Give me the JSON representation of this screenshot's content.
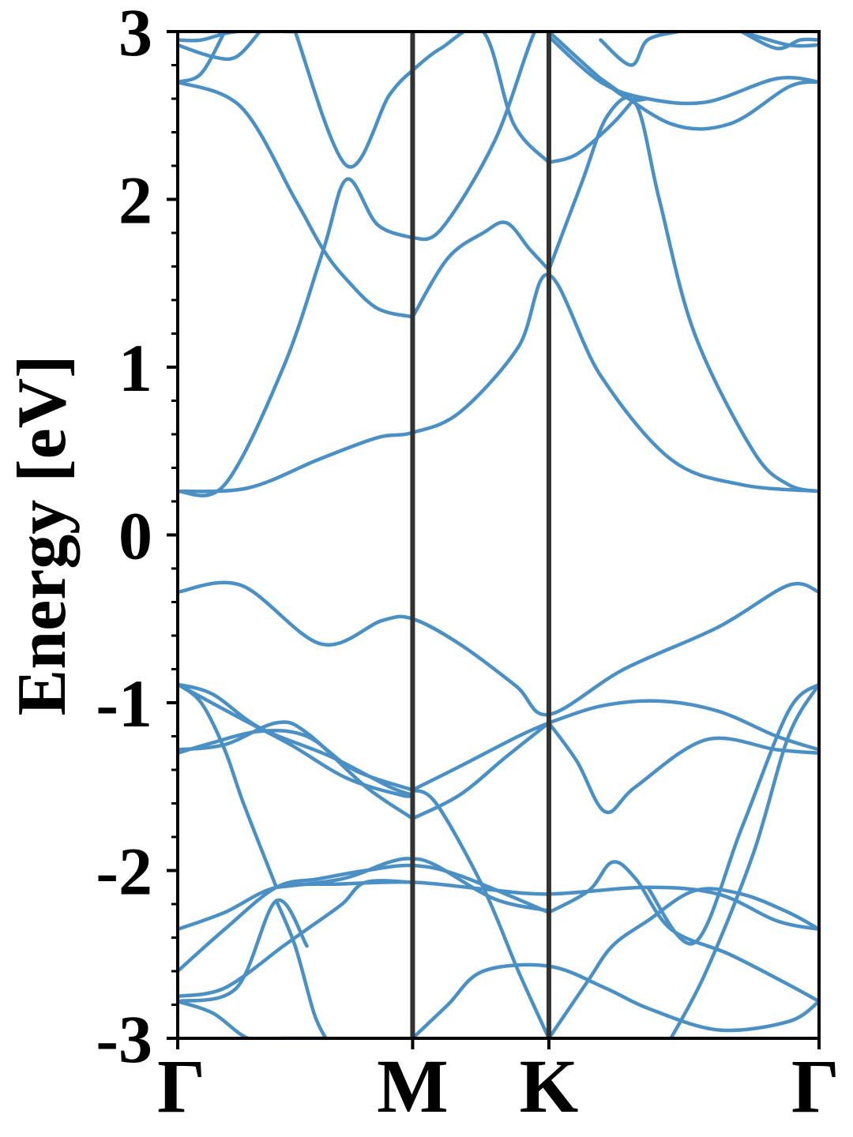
{
  "chart_data": {
    "type": "line",
    "title": "",
    "xlabel": "",
    "ylabel": "Energy [eV]",
    "ylim": [
      -3,
      3
    ],
    "xlim": [
      0,
      2.73
    ],
    "yticks": [
      -3,
      -2,
      -1,
      0,
      1,
      2,
      3
    ],
    "ytick_labels": [
      "-3",
      "-2",
      "-1",
      "0",
      "1",
      "2",
      "3"
    ],
    "minor_ytick_step": 0.2,
    "k_points": [
      {
        "label": "Γ",
        "x": 0
      },
      {
        "label": "M",
        "x": 1.0
      },
      {
        "label": "K",
        "x": 1.58
      },
      {
        "label": "Γ",
        "x": 2.73
      }
    ],
    "vertical_lines_at": [
      1.0,
      1.58
    ],
    "grid": false,
    "legend": "none",
    "line_color": "#4a90c4",
    "vline_color": "#333333",
    "series": [
      {
        "x": [
          0,
          0.27,
          0.61,
          0.87,
          1.0,
          1.2,
          1.44,
          1.58,
          1.9,
          2.3,
          2.6,
          2.73
        ],
        "values": [
          -0.34,
          -0.3,
          -0.65,
          -0.51,
          -0.5,
          -0.65,
          -0.9,
          -1.07,
          -0.8,
          -0.55,
          -0.3,
          -0.34
        ]
      },
      {
        "x": [
          0,
          0.3,
          0.6,
          0.85,
          1.0,
          1.2,
          1.45,
          1.58,
          1.8,
          2.1,
          2.4,
          2.73
        ],
        "values": [
          0.26,
          0.28,
          0.45,
          0.58,
          0.61,
          0.73,
          1.12,
          1.55,
          0.95,
          0.45,
          0.3,
          0.26
        ]
      },
      {
        "x": [
          0,
          0.2,
          0.45,
          0.62,
          0.72,
          0.85,
          1.0
        ],
        "values": [
          0.26,
          0.3,
          1.0,
          1.7,
          2.12,
          1.85,
          1.77
        ]
      },
      {
        "x": [
          0,
          0.27,
          0.5,
          0.62,
          0.72,
          0.85,
          1.0
        ],
        "values": [
          2.7,
          2.55,
          2.0,
          1.7,
          1.52,
          1.35,
          1.3
        ]
      },
      {
        "x": [
          0.5,
          0.72,
          0.9,
          1.0
        ],
        "values": [
          3.0,
          2.2,
          2.62,
          2.77
        ]
      },
      {
        "x": [
          1.0,
          1.15,
          1.3,
          1.4,
          1.5,
          1.58
        ],
        "values": [
          1.3,
          1.65,
          1.8,
          1.86,
          1.7,
          1.58
        ]
      },
      {
        "x": [
          1.58,
          1.72,
          1.83,
          1.95,
          2.05,
          2.2,
          2.45,
          2.6,
          2.73
        ],
        "values": [
          1.58,
          2.1,
          2.5,
          2.57,
          2.0,
          1.2,
          0.5,
          0.3,
          0.26
        ]
      },
      {
        "x": [
          1.0,
          1.12,
          1.35,
          1.52,
          1.58
        ],
        "values": [
          1.77,
          1.82,
          2.35,
          3.0,
          3.0
        ]
      },
      {
        "x": [
          1.0,
          1.12,
          1.3,
          1.43,
          1.58
        ],
        "values": [
          2.77,
          2.9,
          3.0,
          2.45,
          2.22
        ]
      },
      {
        "x": [
          1.58,
          1.7,
          1.85,
          1.95
        ],
        "values": [
          2.22,
          2.27,
          2.45,
          2.61
        ]
      },
      {
        "x": [
          1.58,
          1.8,
          1.92,
          2.0
        ],
        "values": [
          3.0,
          2.72,
          2.6,
          2.6
        ]
      },
      {
        "x": [
          1.8,
          1.93,
          2.0,
          2.13
        ],
        "values": [
          2.95,
          2.8,
          2.95,
          3.0
        ]
      },
      {
        "x": [
          1.58,
          1.8,
          2.0,
          2.25,
          2.55,
          2.73
        ],
        "values": [
          2.97,
          2.7,
          2.6,
          2.58,
          2.72,
          2.7
        ]
      },
      {
        "x": [
          1.8,
          2.1,
          2.35,
          2.6,
          2.73
        ],
        "values": [
          2.72,
          2.45,
          2.45,
          2.67,
          2.7
        ]
      },
      {
        "x": [
          0,
          0.1,
          0.25,
          0.5
        ],
        "values": [
          2.95,
          2.95,
          3.0,
          3.0
        ]
      },
      {
        "x": [
          0,
          0.15,
          0.25,
          0.35
        ],
        "values": [
          2.92,
          2.85,
          2.85,
          3.0
        ]
      },
      {
        "x": [
          0,
          0.1,
          0.2
        ],
        "values": [
          2.7,
          2.75,
          3.0
        ]
      },
      {
        "x": [
          2.4,
          2.55,
          2.65,
          2.73
        ],
        "values": [
          3.0,
          2.9,
          2.95,
          2.95
        ]
      },
      {
        "x": [
          2.4,
          2.6,
          2.73
        ],
        "values": [
          3.0,
          2.92,
          2.92
        ]
      },
      {
        "x": [
          0,
          0.15,
          0.35,
          0.65,
          0.9,
          1.0
        ],
        "values": [
          -0.89,
          -0.95,
          -1.15,
          -1.32,
          -1.5,
          -1.55
        ]
      },
      {
        "x": [
          0,
          0.25,
          0.48,
          0.72,
          0.95,
          1.0
        ],
        "values": [
          -0.89,
          -1.08,
          -1.25,
          -1.45,
          -1.55,
          -1.55
        ]
      },
      {
        "x": [
          0,
          0.12,
          0.35,
          0.55,
          0.75,
          1.0
        ],
        "values": [
          -1.3,
          -1.25,
          -1.17,
          -1.2,
          -1.4,
          -1.52
        ]
      },
      {
        "x": [
          0,
          0.2,
          0.42,
          0.55,
          0.8,
          1.0
        ],
        "values": [
          -1.28,
          -1.25,
          -1.12,
          -1.18,
          -1.5,
          -1.69
        ]
      },
      {
        "x": [
          1.0,
          1.2,
          1.4,
          1.58
        ],
        "values": [
          -1.69,
          -1.55,
          -1.32,
          -1.12
        ]
      },
      {
        "x": [
          1.0,
          1.2,
          1.45,
          1.58
        ],
        "values": [
          -1.52,
          -1.38,
          -1.2,
          -1.12
        ]
      },
      {
        "x": [
          1.58,
          1.8,
          2.05,
          2.3,
          2.55,
          2.73
        ],
        "values": [
          -1.12,
          -1.02,
          -0.99,
          -1.05,
          -1.2,
          -1.28
        ]
      },
      {
        "x": [
          1.58,
          1.7,
          1.82,
          1.95,
          2.25,
          2.55,
          2.73
        ],
        "values": [
          -1.12,
          -1.35,
          -1.65,
          -1.5,
          -1.22,
          -1.28,
          -1.3
        ]
      },
      {
        "x": [
          0,
          0.1,
          0.2,
          0.28,
          0.42
        ],
        "values": [
          -0.89,
          -1.0,
          -1.28,
          -1.6,
          -2.1
        ]
      },
      {
        "x": [
          0.42,
          0.7,
          0.9,
          1.0,
          1.1,
          1.35,
          1.58
        ],
        "values": [
          -2.1,
          -2.05,
          -1.95,
          -1.93,
          -1.97,
          -2.17,
          -2.24
        ]
      },
      {
        "x": [
          0,
          0.2,
          0.42,
          0.7,
          1.0,
          1.3,
          1.58,
          2.0,
          2.3,
          2.55,
          2.73
        ],
        "values": [
          -2.35,
          -2.25,
          -2.1,
          -2.08,
          -2.07,
          -2.11,
          -2.14,
          -2.1,
          -2.14,
          -2.3,
          -2.35
        ]
      },
      {
        "x": [
          0,
          0.2,
          0.42,
          0.6,
          0.8,
          1.0,
          1.2,
          1.58
        ],
        "values": [
          -2.6,
          -2.35,
          -2.1,
          -2.05,
          -2.0,
          -1.97,
          -2.03,
          -2.25
        ]
      },
      {
        "x": [
          0,
          0.2,
          0.45,
          0.55,
          0.7,
          0.8,
          1.0
        ],
        "values": [
          -2.75,
          -2.7,
          -2.45,
          -2.35,
          -2.2,
          -2.07,
          -2.07
        ]
      },
      {
        "x": [
          0,
          0.25,
          0.42,
          0.55
        ],
        "values": [
          -2.78,
          -2.7,
          -2.18,
          -2.45
        ]
      },
      {
        "x": [
          0.42,
          0.5,
          0.58,
          0.63
        ],
        "values": [
          -2.18,
          -2.45,
          -2.85,
          -3.0
        ]
      },
      {
        "x": [
          1.0,
          1.1,
          1.3,
          1.45,
          1.58
        ],
        "values": [
          -1.52,
          -1.6,
          -2.1,
          -2.6,
          -3.0
        ]
      },
      {
        "x": [
          1.0,
          1.15,
          1.3,
          1.58,
          1.82,
          2.0,
          2.3,
          2.6,
          2.73
        ],
        "values": [
          -3.0,
          -2.8,
          -2.6,
          -2.57,
          -2.7,
          -2.82,
          -2.95,
          -2.9,
          -2.78
        ]
      },
      {
        "x": [
          1.58,
          1.75,
          1.85,
          2.0,
          2.2,
          2.4,
          2.6,
          2.73
        ],
        "values": [
          -3.0,
          -2.65,
          -2.45,
          -2.3,
          -2.12,
          -2.14,
          -2.25,
          -2.35
        ]
      },
      {
        "x": [
          1.58,
          1.75,
          1.85,
          1.95,
          2.1,
          2.35,
          2.6,
          2.73
        ],
        "values": [
          -2.25,
          -2.12,
          -1.95,
          -2.05,
          -2.35,
          -2.5,
          -2.68,
          -2.78
        ]
      },
      {
        "x": [
          2.1,
          2.25,
          2.45,
          2.6,
          2.73
        ],
        "values": [
          -3.0,
          -2.6,
          -1.9,
          -1.2,
          -0.89
        ]
      },
      {
        "x": [
          2.0,
          2.2,
          2.4,
          2.6,
          2.73
        ],
        "values": [
          -2.1,
          -2.43,
          -1.75,
          -1.05,
          -0.89
        ]
      },
      {
        "x": [
          0,
          0.15,
          0.3,
          0.45,
          0.62
        ],
        "values": [
          -2.78,
          -2.85,
          -3.0,
          -3.0,
          -3.0
        ]
      }
    ]
  }
}
